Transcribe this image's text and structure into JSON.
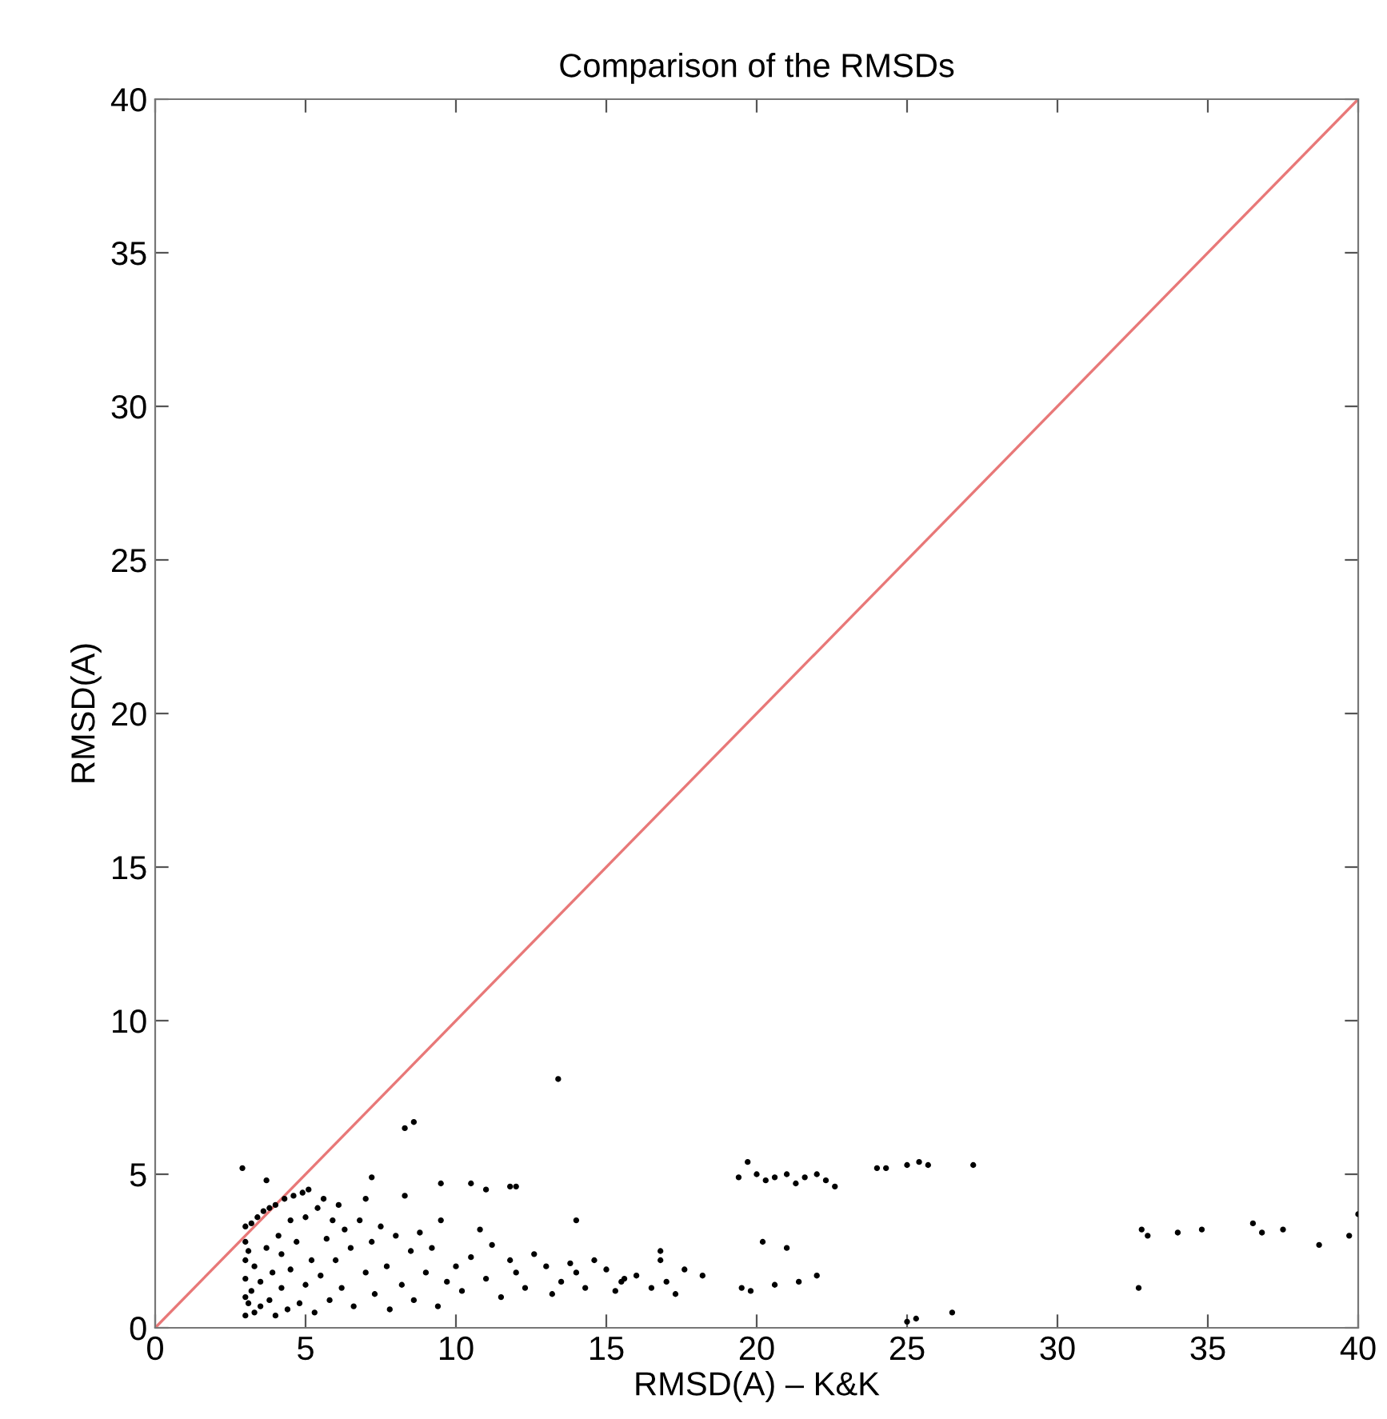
{
  "chart_data": {
    "type": "scatter",
    "title": "Comparison of the RMSDs",
    "xlabel": "RMSD(A) – K&K",
    "ylabel": "RMSD(A)",
    "xlim": [
      0,
      40
    ],
    "ylim": [
      0,
      40
    ],
    "xticks": [
      0,
      5,
      10,
      15,
      20,
      25,
      30,
      35,
      40
    ],
    "yticks": [
      0,
      5,
      10,
      15,
      20,
      25,
      30,
      35,
      40
    ],
    "grid": false,
    "marker": "circle",
    "series": [
      {
        "color": "#000000",
        "x": [
          3.0,
          3.0,
          3.0,
          3.0,
          3.0,
          3.0,
          3.1,
          3.1,
          3.2,
          3.2,
          3.3,
          3.3,
          3.4,
          3.5,
          3.5,
          3.6,
          3.7,
          3.8,
          3.8,
          3.9,
          4.0,
          4.0,
          4.1,
          4.2,
          4.2,
          4.3,
          4.4,
          4.5,
          4.5,
          4.6,
          4.7,
          4.8,
          4.9,
          5.0,
          5.0,
          5.1,
          5.2,
          5.3,
          5.4,
          5.5,
          5.6,
          5.7,
          5.8,
          5.9,
          6.0,
          6.1,
          6.2,
          6.3,
          6.5,
          6.6,
          6.8,
          7.0,
          7.0,
          7.2,
          7.3,
          7.5,
          7.7,
          7.8,
          8.0,
          8.2,
          8.3,
          8.5,
          8.6,
          8.8,
          9.0,
          9.2,
          9.4,
          9.5,
          9.7,
          10.0,
          10.2,
          10.5,
          10.8,
          11.0,
          11.2,
          11.5,
          11.8,
          12.0,
          12.3,
          12.6,
          13.0,
          13.2,
          13.5,
          13.8,
          14.0,
          14.3,
          14.6,
          15.0,
          15.3,
          15.6,
          16.0,
          16.5,
          16.8,
          17.0,
          17.3,
          17.6,
          18.2,
          2.9,
          3.7,
          8.3,
          8.6,
          13.4,
          9.5,
          7.2,
          11.0,
          11.8,
          19.4,
          19.7,
          20.0,
          20.3,
          20.6,
          21.0,
          21.3,
          21.6,
          22.0,
          22.3,
          22.6,
          24.0,
          24.3,
          25.0,
          25.4,
          25.7,
          27.2,
          19.5,
          19.8,
          20.2,
          20.6,
          21.0,
          21.4,
          22.0,
          25.0,
          25.3,
          26.5,
          32.8,
          33.0,
          34.0,
          34.8,
          36.5,
          36.8,
          37.5,
          38.7,
          39.7,
          40.0,
          32.7,
          10.5,
          12.0,
          14.0,
          15.5,
          16.8
        ],
        "values": [
          0.4,
          1.0,
          1.6,
          2.2,
          2.8,
          3.3,
          0.8,
          2.5,
          1.2,
          3.4,
          0.5,
          2.0,
          3.6,
          0.7,
          1.5,
          3.8,
          2.6,
          0.9,
          3.9,
          1.8,
          0.4,
          4.0,
          3.0,
          1.3,
          2.4,
          4.2,
          0.6,
          3.5,
          1.9,
          4.3,
          2.8,
          0.8,
          4.4,
          1.4,
          3.6,
          4.5,
          2.2,
          0.5,
          3.9,
          1.7,
          4.2,
          2.9,
          0.9,
          3.5,
          2.2,
          4.0,
          1.3,
          3.2,
          2.6,
          0.7,
          3.5,
          1.8,
          4.2,
          2.8,
          1.1,
          3.3,
          2.0,
          0.6,
          3.0,
          1.4,
          4.3,
          2.5,
          0.9,
          3.1,
          1.8,
          2.6,
          0.7,
          3.5,
          1.5,
          2.0,
          1.2,
          2.3,
          3.2,
          1.6,
          2.7,
          1.0,
          2.2,
          1.8,
          1.3,
          2.4,
          2.0,
          1.1,
          1.5,
          2.1,
          1.8,
          1.3,
          2.2,
          1.9,
          1.2,
          1.6,
          1.7,
          1.3,
          2.2,
          1.5,
          1.1,
          1.9,
          1.7,
          5.2,
          4.8,
          6.5,
          6.7,
          8.1,
          4.7,
          4.9,
          4.5,
          4.6,
          4.9,
          5.4,
          5.0,
          4.8,
          4.9,
          5.0,
          4.7,
          4.9,
          5.0,
          4.8,
          4.6,
          5.2,
          5.2,
          5.3,
          5.4,
          5.3,
          5.3,
          1.3,
          1.2,
          2.8,
          1.4,
          2.6,
          1.5,
          1.7,
          0.2,
          0.3,
          0.5,
          3.2,
          3.0,
          3.1,
          3.2,
          3.4,
          3.1,
          3.2,
          2.7,
          3.0,
          3.7,
          1.3,
          4.7,
          4.6,
          3.5,
          1.5,
          2.5
        ]
      },
      {
        "type": "line",
        "color": "#e87878",
        "marker": "none",
        "x": [
          0,
          40
        ],
        "values": [
          0,
          40
        ]
      }
    ]
  }
}
